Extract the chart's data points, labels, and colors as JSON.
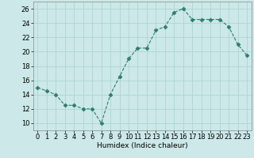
{
  "x": [
    0,
    1,
    2,
    3,
    4,
    5,
    6,
    7,
    8,
    9,
    10,
    11,
    12,
    13,
    14,
    15,
    16,
    17,
    18,
    19,
    20,
    21,
    22,
    23
  ],
  "y": [
    15.0,
    14.5,
    14.0,
    12.5,
    12.5,
    12.0,
    12.0,
    10.0,
    14.0,
    16.5,
    19.0,
    20.5,
    20.5,
    23.0,
    23.5,
    25.5,
    26.0,
    24.5,
    24.5,
    24.5,
    24.5,
    23.5,
    21.0,
    19.5
  ],
  "line_color": "#2e7d6e",
  "marker": "D",
  "marker_size": 2.5,
  "bg_color": "#cce8e8",
  "grid_color": "#aad0d0",
  "xlabel": "Humidex (Indice chaleur)",
  "ylim": [
    9,
    27
  ],
  "xlim": [
    -0.5,
    23.5
  ],
  "yticks": [
    10,
    12,
    14,
    16,
    18,
    20,
    22,
    24,
    26
  ],
  "xticks": [
    0,
    1,
    2,
    3,
    4,
    5,
    6,
    7,
    8,
    9,
    10,
    11,
    12,
    13,
    14,
    15,
    16,
    17,
    18,
    19,
    20,
    21,
    22,
    23
  ],
  "label_fontsize": 6.5,
  "tick_fontsize": 6
}
